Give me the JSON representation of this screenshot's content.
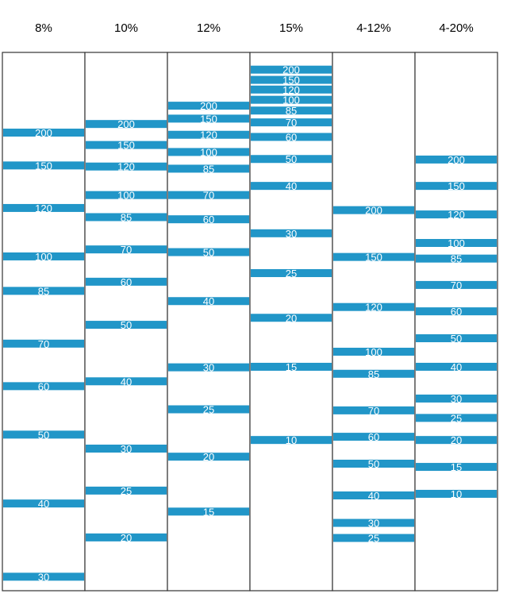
{
  "colors": {
    "band": "#2196c8",
    "border": "#333333",
    "label": "#ffffff"
  },
  "lanes": [
    {
      "header": "8%",
      "bands": [
        {
          "label": "200",
          "pos": 0.149
        },
        {
          "label": "150",
          "pos": 0.21
        },
        {
          "label": "120",
          "pos": 0.289
        },
        {
          "label": "100",
          "pos": 0.379
        },
        {
          "label": "85",
          "pos": 0.443
        },
        {
          "label": "70",
          "pos": 0.541
        },
        {
          "label": "60",
          "pos": 0.62
        },
        {
          "label": "50",
          "pos": 0.71
        },
        {
          "label": "40",
          "pos": 0.838
        },
        {
          "label": "30",
          "pos": 0.974
        }
      ]
    },
    {
      "header": "10%",
      "bands": [
        {
          "label": "200",
          "pos": 0.133
        },
        {
          "label": "150",
          "pos": 0.172
        },
        {
          "label": "120",
          "pos": 0.212
        },
        {
          "label": "100",
          "pos": 0.265
        },
        {
          "label": "85",
          "pos": 0.306
        },
        {
          "label": "70",
          "pos": 0.366
        },
        {
          "label": "60",
          "pos": 0.426
        },
        {
          "label": "50",
          "pos": 0.506
        },
        {
          "label": "40",
          "pos": 0.611
        },
        {
          "label": "30",
          "pos": 0.736
        },
        {
          "label": "25",
          "pos": 0.814
        },
        {
          "label": "20",
          "pos": 0.901
        }
      ]
    },
    {
      "header": "12%",
      "bands": [
        {
          "label": "200",
          "pos": 0.099
        },
        {
          "label": "150",
          "pos": 0.123
        },
        {
          "label": "120",
          "pos": 0.153
        },
        {
          "label": "100",
          "pos": 0.185
        },
        {
          "label": "85",
          "pos": 0.216
        },
        {
          "label": "70",
          "pos": 0.265
        },
        {
          "label": "60",
          "pos": 0.31
        },
        {
          "label": "50",
          "pos": 0.371
        },
        {
          "label": "40",
          "pos": 0.462
        },
        {
          "label": "30",
          "pos": 0.585
        },
        {
          "label": "25",
          "pos": 0.663
        },
        {
          "label": "20",
          "pos": 0.751
        },
        {
          "label": "15",
          "pos": 0.853
        }
      ]
    },
    {
      "header": "15%",
      "bands": [
        {
          "label": "200",
          "pos": 0.032
        },
        {
          "label": "150",
          "pos": 0.051
        },
        {
          "label": "120",
          "pos": 0.069
        },
        {
          "label": "100",
          "pos": 0.088
        },
        {
          "label": "85",
          "pos": 0.108
        },
        {
          "label": "70",
          "pos": 0.13
        },
        {
          "label": "60",
          "pos": 0.157
        },
        {
          "label": "50",
          "pos": 0.198
        },
        {
          "label": "40",
          "pos": 0.248
        },
        {
          "label": "30",
          "pos": 0.336
        },
        {
          "label": "25",
          "pos": 0.41
        },
        {
          "label": "20",
          "pos": 0.493
        },
        {
          "label": "15",
          "pos": 0.584
        },
        {
          "label": "10",
          "pos": 0.72
        }
      ]
    },
    {
      "header": "4-12%",
      "bands": [
        {
          "label": "200",
          "pos": 0.293
        },
        {
          "label": "150",
          "pos": 0.38
        },
        {
          "label": "120",
          "pos": 0.473
        },
        {
          "label": "100",
          "pos": 0.556
        },
        {
          "label": "85",
          "pos": 0.597
        },
        {
          "label": "70",
          "pos": 0.665
        },
        {
          "label": "60",
          "pos": 0.714
        },
        {
          "label": "50",
          "pos": 0.764
        },
        {
          "label": "40",
          "pos": 0.823
        },
        {
          "label": "30",
          "pos": 0.874
        },
        {
          "label": "25",
          "pos": 0.902
        }
      ]
    },
    {
      "header": "4-20%",
      "bands": [
        {
          "label": "200",
          "pos": 0.199
        },
        {
          "label": "150",
          "pos": 0.248
        },
        {
          "label": "120",
          "pos": 0.301
        },
        {
          "label": "100",
          "pos": 0.354
        },
        {
          "label": "85",
          "pos": 0.383
        },
        {
          "label": "70",
          "pos": 0.432
        },
        {
          "label": "60",
          "pos": 0.481
        },
        {
          "label": "50",
          "pos": 0.531
        },
        {
          "label": "40",
          "pos": 0.584
        },
        {
          "label": "30",
          "pos": 0.643
        },
        {
          "label": "25",
          "pos": 0.679
        },
        {
          "label": "20",
          "pos": 0.72
        },
        {
          "label": "15",
          "pos": 0.77
        },
        {
          "label": "10",
          "pos": 0.82
        }
      ]
    }
  ]
}
